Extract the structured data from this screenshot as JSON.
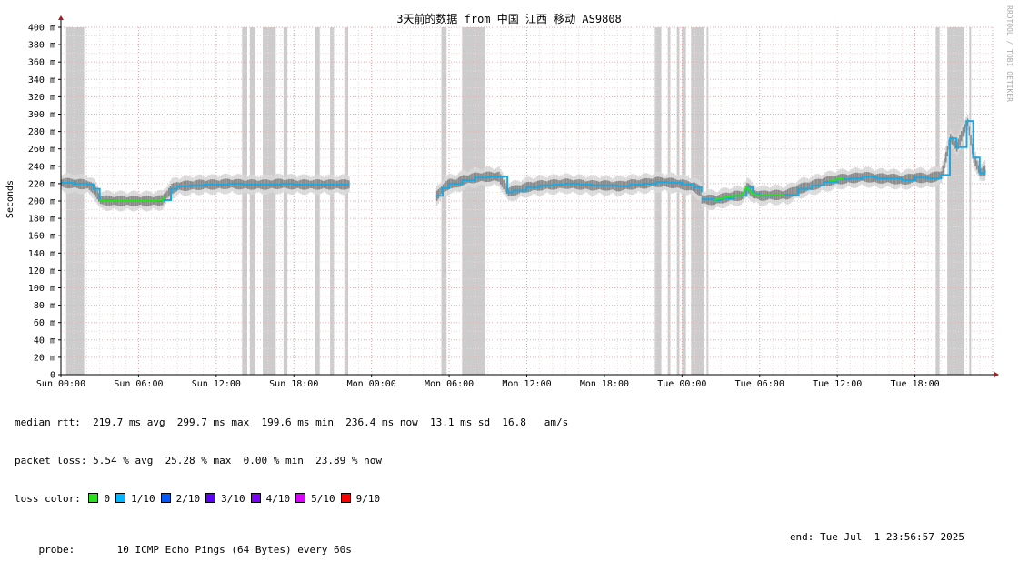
{
  "chart_data": {
    "type": "line",
    "title": "3天前的数据 from 中国 江西 移动 AS9808",
    "ylabel": "Seconds",
    "watermark": "RRDTOOL / TOBI OETIKER",
    "ylim": [
      0,
      400
    ],
    "yticks": [
      {
        "v": 0,
        "t": "0"
      },
      {
        "v": 20,
        "t": "20 m"
      },
      {
        "v": 40,
        "t": "40 m"
      },
      {
        "v": 60,
        "t": "60 m"
      },
      {
        "v": 80,
        "t": "80 m"
      },
      {
        "v": 100,
        "t": "100 m"
      },
      {
        "v": 120,
        "t": "120 m"
      },
      {
        "v": 140,
        "t": "140 m"
      },
      {
        "v": 160,
        "t": "160 m"
      },
      {
        "v": 180,
        "t": "180 m"
      },
      {
        "v": 200,
        "t": "200 m"
      },
      {
        "v": 220,
        "t": "220 m"
      },
      {
        "v": 240,
        "t": "240 m"
      },
      {
        "v": 260,
        "t": "260 m"
      },
      {
        "v": 280,
        "t": "280 m"
      },
      {
        "v": 300,
        "t": "300 m"
      },
      {
        "v": 320,
        "t": "320 m"
      },
      {
        "v": 340,
        "t": "340 m"
      },
      {
        "v": 360,
        "t": "360 m"
      },
      {
        "v": 380,
        "t": "380 m"
      },
      {
        "v": 400,
        "t": "400 m"
      }
    ],
    "xlim": [
      0,
      72
    ],
    "xticks": [
      {
        "h": 0,
        "t": "Sun 00:00"
      },
      {
        "h": 6,
        "t": "Sun 06:00"
      },
      {
        "h": 12,
        "t": "Sun 12:00"
      },
      {
        "h": 18,
        "t": "Sun 18:00"
      },
      {
        "h": 24,
        "t": "Mon 00:00"
      },
      {
        "h": 30,
        "t": "Mon 06:00"
      },
      {
        "h": 36,
        "t": "Mon 12:00"
      },
      {
        "h": 42,
        "t": "Mon 18:00"
      },
      {
        "h": 48,
        "t": "Tue 00:00"
      },
      {
        "h": 54,
        "t": "Tue 06:00"
      },
      {
        "h": 60,
        "t": "Tue 12:00"
      },
      {
        "h": 66,
        "t": "Tue 18:00"
      }
    ],
    "loss_bands": [
      [
        0.4,
        1.8
      ],
      [
        14.0,
        14.4
      ],
      [
        14.6,
        15.0
      ],
      [
        15.6,
        16.6
      ],
      [
        17.2,
        17.5
      ],
      [
        19.6,
        20.0
      ],
      [
        20.8,
        21.1
      ],
      [
        21.9,
        22.2
      ],
      [
        29.4,
        29.8
      ],
      [
        31.0,
        32.8
      ],
      [
        45.9,
        46.4
      ],
      [
        46.9,
        47.1
      ],
      [
        47.6,
        47.8
      ],
      [
        48.0,
        48.3
      ],
      [
        48.7,
        49.7
      ],
      [
        49.9,
        50.0
      ],
      [
        67.6,
        67.9
      ],
      [
        68.5,
        69.8
      ],
      [
        70.2,
        70.3
      ]
    ],
    "gaps": [
      [
        22.3,
        29.0
      ]
    ],
    "series": [
      {
        "x": [
          0,
          1,
          2,
          2.5,
          3,
          4,
          5,
          6,
          7,
          7.8,
          8.5,
          9,
          10,
          11,
          12,
          13,
          14,
          15,
          16,
          17,
          18,
          19,
          20,
          21,
          22.3
        ],
        "y": [
          221,
          220,
          219,
          214,
          201,
          200,
          200,
          200,
          200,
          201,
          214,
          217,
          218,
          219,
          219,
          220,
          219,
          219,
          219,
          220,
          219,
          219,
          219,
          219,
          219
        ]
      },
      {
        "x": [
          29.0,
          29.5,
          30,
          30.5,
          31,
          32,
          33,
          33.8,
          34.5,
          35,
          36,
          37,
          38,
          39,
          40,
          41,
          42,
          43,
          44,
          45,
          46,
          47,
          48,
          48.9,
          49.5
        ],
        "y": [
          206,
          215,
          220,
          220,
          224,
          227,
          228,
          228,
          210,
          212,
          216,
          218,
          219,
          220,
          219,
          218,
          218,
          217,
          219,
          220,
          222,
          221,
          219,
          216,
          210
        ]
      },
      {
        "x": [
          49.5,
          50.5,
          51,
          52,
          52.6,
          53,
          53.5,
          54,
          55,
          56,
          57,
          58,
          59,
          60,
          61,
          62,
          63,
          64,
          65,
          66,
          67,
          68,
          68.7,
          69.2,
          70,
          70.5,
          71,
          71.4
        ],
        "y": [
          202,
          201,
          203,
          206,
          206,
          216,
          208,
          206,
          207,
          207,
          214,
          218,
          222,
          225,
          226,
          228,
          226,
          226,
          224,
          227,
          226,
          230,
          272,
          262,
          292,
          250,
          232,
          236
        ]
      }
    ],
    "series_color": "#1fa7e0",
    "green_segments": [
      [
        3.0,
        8.0
      ],
      [
        50.5,
        56.0
      ],
      [
        59.4,
        60.6
      ]
    ],
    "green_color": "#26e21a",
    "legend": {
      "median_rtt": "median rtt:  219.7 ms avg  299.7 ms max  199.6 ms min  236.4 ms now  13.1 ms sd  16.8   am/s",
      "packet_loss": "packet loss: 5.54 % avg  25.28 % max  0.00 % min  23.89 % now",
      "loss_color_label": "loss color:",
      "loss_colors": [
        {
          "label": "0",
          "color": "#26e21a"
        },
        {
          "label": "1/10",
          "color": "#00b8ff"
        },
        {
          "label": "2/10",
          "color": "#0059ff"
        },
        {
          "label": "3/10",
          "color": "#5e00ff"
        },
        {
          "label": "4/10",
          "color": "#7e00ff"
        },
        {
          "label": "5/10",
          "color": "#dd00ff"
        },
        {
          "label": "9/10",
          "color": "#ff0000"
        }
      ],
      "probe": "probe:       10 ICMP Echo Pings (64 Bytes) every 60s",
      "end": "end: Tue Jul  1 23:56:57 2025"
    }
  }
}
